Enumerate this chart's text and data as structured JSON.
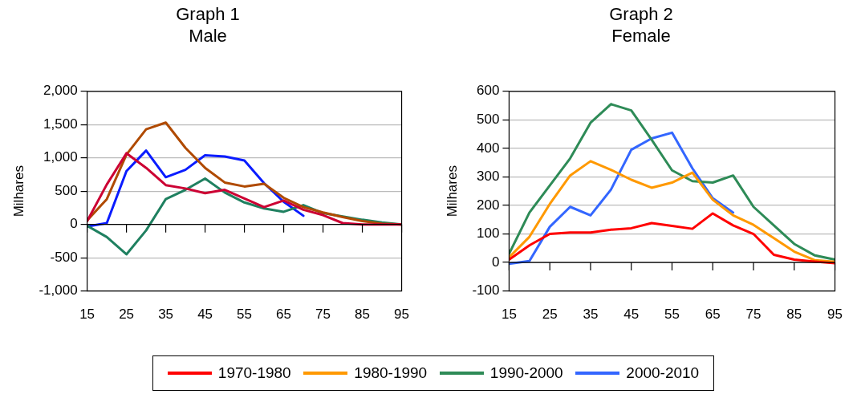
{
  "chart_data": [
    {
      "type": "line",
      "title": "Graph 1",
      "subtitle": "Male",
      "ylabel": "Milhares",
      "x": [
        15,
        20,
        25,
        30,
        35,
        40,
        45,
        50,
        55,
        60,
        65,
        70,
        75,
        80,
        85,
        90,
        95
      ],
      "xlim": [
        15,
        95
      ],
      "xticks": [
        15,
        25,
        35,
        45,
        55,
        65,
        75,
        85,
        95
      ],
      "ylim": [
        -1000,
        2000
      ],
      "yticks": [
        {
          "value": -1000,
          "label": "-1,000"
        },
        {
          "value": -500,
          "label": "-500"
        },
        {
          "value": 0,
          "label": "0"
        },
        {
          "value": 500,
          "label": "500"
        },
        {
          "value": 1000,
          "label": "1,000"
        },
        {
          "value": 1500,
          "label": "1,500"
        },
        {
          "value": 2000,
          "label": "2,000"
        }
      ],
      "grid": "y",
      "marker": "none",
      "series": [
        {
          "color": "#cc0033",
          "values": [
            50,
            600,
            1070,
            850,
            590,
            540,
            470,
            520,
            390,
            260,
            360,
            220,
            140,
            20,
            0,
            0,
            0
          ]
        },
        {
          "color": "#b04a00",
          "values": [
            60,
            380,
            1050,
            1430,
            1530,
            1150,
            850,
            630,
            570,
            610,
            400,
            260,
            180,
            110,
            50,
            10,
            0
          ]
        },
        {
          "color": "#1f8060",
          "values": [
            -20,
            -190,
            -450,
            -90,
            380,
            520,
            690,
            480,
            330,
            240,
            190,
            290,
            170,
            120,
            70,
            30,
            0
          ]
        },
        {
          "color": "#0a1cff",
          "values": [
            -30,
            20,
            800,
            1110,
            710,
            820,
            1040,
            1020,
            960,
            620,
            340,
            130,
            null,
            null,
            null,
            null,
            null
          ]
        }
      ]
    },
    {
      "type": "line",
      "title": "Graph 2",
      "subtitle": "Female",
      "ylabel": "Milhares",
      "x": [
        15,
        20,
        25,
        30,
        35,
        40,
        45,
        50,
        55,
        60,
        65,
        70,
        75,
        80,
        85,
        90,
        95
      ],
      "xlim": [
        15,
        95
      ],
      "xticks": [
        15,
        25,
        35,
        45,
        55,
        65,
        75,
        85,
        95
      ],
      "ylim": [
        -100,
        600
      ],
      "yticks": [
        -100,
        0,
        100,
        200,
        300,
        400,
        500,
        600
      ],
      "grid": "y",
      "marker": "none",
      "legend": "bottom",
      "series": [
        {
          "name": "1970-1980",
          "color": "#ff0000",
          "values": [
            10,
            60,
            100,
            105,
            105,
            115,
            120,
            138,
            128,
            118,
            172,
            130,
            100,
            27,
            10,
            3,
            -3
          ]
        },
        {
          "name": "1980-1990",
          "color": "#ff9900",
          "values": [
            18,
            90,
            205,
            305,
            355,
            325,
            290,
            262,
            280,
            315,
            220,
            165,
            132,
            85,
            38,
            8,
            2
          ]
        },
        {
          "name": "1990-2000",
          "color": "#2e8b57",
          "values": [
            30,
            175,
            270,
            365,
            490,
            555,
            533,
            430,
            323,
            285,
            280,
            305,
            195,
            130,
            65,
            25,
            10
          ]
        },
        {
          "name": "2000-2010",
          "color": "#3366ff",
          "values": [
            -5,
            5,
            125,
            195,
            165,
            255,
            395,
            435,
            455,
            330,
            225,
            175,
            null,
            null,
            null,
            null,
            null
          ]
        }
      ]
    }
  ]
}
